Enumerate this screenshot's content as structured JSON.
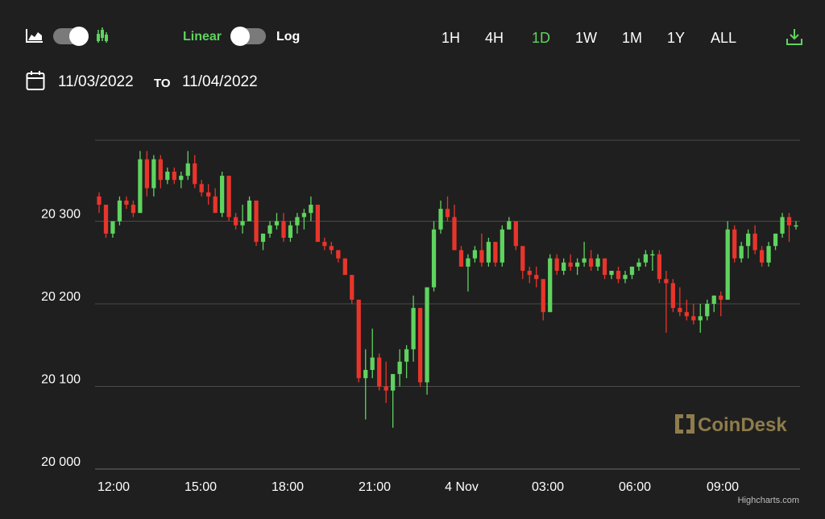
{
  "toolbar": {
    "scale_linear": "Linear",
    "scale_log": "Log",
    "ranges": [
      "1H",
      "4H",
      "1D",
      "1W",
      "1M",
      "1Y",
      "ALL"
    ],
    "active_range": "1D",
    "accent_color": "#5fd35f",
    "icons": [
      "area-chart-icon",
      "candlestick-chart-icon",
      "download-icon",
      "calendar-icon"
    ]
  },
  "date_range": {
    "from": "11/03/2022",
    "to_label": "TO",
    "to": "11/04/2022"
  },
  "watermark": "CoinDesk",
  "credits": "Highcharts.com",
  "chart_data": {
    "type": "candlestick",
    "x_tick_labels": [
      "12:00",
      "15:00",
      "18:00",
      "21:00",
      "4 Nov",
      "03:00",
      "06:00",
      "09:00"
    ],
    "y_tick_labels": [
      "20 000",
      "20 100",
      "20 200",
      "20 300"
    ],
    "y_ticks": [
      20000,
      20100,
      20200,
      20300
    ],
    "ylim": [
      20000,
      20400
    ],
    "grid": true,
    "up_color": "#5fd35f",
    "down_color": "#e8352b",
    "candles": [
      [
        20330,
        20335,
        20310,
        20320
      ],
      [
        20320,
        20320,
        20280,
        20285
      ],
      [
        20285,
        20300,
        20280,
        20300
      ],
      [
        20300,
        20330,
        20295,
        20325
      ],
      [
        20325,
        20330,
        20315,
        20320
      ],
      [
        20320,
        20325,
        20305,
        20310
      ],
      [
        20310,
        20385,
        20310,
        20375
      ],
      [
        20375,
        20385,
        20330,
        20340
      ],
      [
        20340,
        20380,
        20330,
        20375
      ],
      [
        20375,
        20380,
        20340,
        20350
      ],
      [
        20350,
        20365,
        20345,
        20360
      ],
      [
        20360,
        20365,
        20345,
        20350
      ],
      [
        20350,
        20360,
        20340,
        20355
      ],
      [
        20355,
        20385,
        20350,
        20370
      ],
      [
        20370,
        20380,
        20340,
        20345
      ],
      [
        20345,
        20350,
        20330,
        20335
      ],
      [
        20335,
        20345,
        20320,
        20330
      ],
      [
        20330,
        20340,
        20310,
        20310
      ],
      [
        20310,
        20360,
        20305,
        20355
      ],
      [
        20355,
        20355,
        20300,
        20305
      ],
      [
        20305,
        20310,
        20290,
        20295
      ],
      [
        20295,
        20320,
        20285,
        20300
      ],
      [
        20300,
        20330,
        20300,
        20325
      ],
      [
        20325,
        20325,
        20270,
        20275
      ],
      [
        20275,
        20285,
        20265,
        20285
      ],
      [
        20285,
        20300,
        20280,
        20295
      ],
      [
        20295,
        20310,
        20290,
        20300
      ],
      [
        20300,
        20310,
        20275,
        20280
      ],
      [
        20280,
        20300,
        20275,
        20295
      ],
      [
        20295,
        20310,
        20285,
        20305
      ],
      [
        20305,
        20315,
        20290,
        20310
      ],
      [
        20310,
        20330,
        20300,
        20320
      ],
      [
        20320,
        20320,
        20275,
        20275
      ],
      [
        20275,
        20280,
        20265,
        20270
      ],
      [
        20270,
        20275,
        20260,
        20265
      ],
      [
        20265,
        20265,
        20250,
        20255
      ],
      [
        20255,
        20255,
        20235,
        20235
      ],
      [
        20235,
        20235,
        20200,
        20205
      ],
      [
        20205,
        20205,
        20105,
        20110
      ],
      [
        20110,
        20145,
        20060,
        20120
      ],
      [
        20120,
        20170,
        20110,
        20135
      ],
      [
        20135,
        20140,
        20095,
        20100
      ],
      [
        20100,
        20130,
        20080,
        20095
      ],
      [
        20095,
        20115,
        20050,
        20115
      ],
      [
        20115,
        20145,
        20100,
        20130
      ],
      [
        20130,
        20150,
        20110,
        20145
      ],
      [
        20145,
        20210,
        20130,
        20195
      ],
      [
        20195,
        20195,
        20100,
        20105
      ],
      [
        20105,
        20220,
        20090,
        20220
      ],
      [
        20220,
        20300,
        20215,
        20290
      ],
      [
        20290,
        20325,
        20285,
        20315
      ],
      [
        20315,
        20330,
        20300,
        20305
      ],
      [
        20305,
        20320,
        20265,
        20265
      ],
      [
        20265,
        20270,
        20245,
        20245
      ],
      [
        20245,
        20260,
        20215,
        20255
      ],
      [
        20255,
        20270,
        20250,
        20265
      ],
      [
        20265,
        20285,
        20245,
        20250
      ],
      [
        20250,
        20280,
        20245,
        20275
      ],
      [
        20275,
        20275,
        20245,
        20250
      ],
      [
        20250,
        20295,
        20245,
        20290
      ],
      [
        20290,
        20305,
        20290,
        20300
      ],
      [
        20300,
        20300,
        20265,
        20270
      ],
      [
        20270,
        20270,
        20230,
        20240
      ],
      [
        20240,
        20245,
        20225,
        20235
      ],
      [
        20235,
        20245,
        20220,
        20230
      ],
      [
        20230,
        20230,
        20180,
        20190
      ],
      [
        20190,
        20260,
        20190,
        20255
      ],
      [
        20255,
        20260,
        20235,
        20240
      ],
      [
        20240,
        20255,
        20235,
        20250
      ],
      [
        20250,
        20260,
        20240,
        20245
      ],
      [
        20245,
        20255,
        20235,
        20250
      ],
      [
        20250,
        20275,
        20245,
        20255
      ],
      [
        20255,
        20265,
        20240,
        20245
      ],
      [
        20245,
        20260,
        20240,
        20255
      ],
      [
        20255,
        20255,
        20230,
        20235
      ],
      [
        20235,
        20240,
        20230,
        20240
      ],
      [
        20240,
        20245,
        20225,
        20230
      ],
      [
        20230,
        20240,
        20225,
        20235
      ],
      [
        20235,
        20245,
        20230,
        20245
      ],
      [
        20245,
        20255,
        20240,
        20250
      ],
      [
        20250,
        20265,
        20245,
        20260
      ],
      [
        20260,
        20265,
        20240,
        20260
      ],
      [
        20260,
        20265,
        20225,
        20230
      ],
      [
        20230,
        20240,
        20165,
        20225
      ],
      [
        20225,
        20230,
        20190,
        20195
      ],
      [
        20195,
        20220,
        20185,
        20190
      ],
      [
        20190,
        20205,
        20180,
        20185
      ],
      [
        20185,
        20200,
        20175,
        20180
      ],
      [
        20180,
        20200,
        20165,
        20185
      ],
      [
        20185,
        20205,
        20180,
        20200
      ],
      [
        20200,
        20210,
        20190,
        20210
      ],
      [
        20210,
        20215,
        20185,
        20205
      ],
      [
        20205,
        20300,
        20205,
        20290
      ],
      [
        20290,
        20295,
        20250,
        20255
      ],
      [
        20255,
        20275,
        20250,
        20270
      ],
      [
        20270,
        20290,
        20255,
        20285
      ],
      [
        20285,
        20295,
        20260,
        20265
      ],
      [
        20265,
        20270,
        20245,
        20250
      ],
      [
        20250,
        20275,
        20245,
        20270
      ],
      [
        20270,
        20285,
        20265,
        20285
      ],
      [
        20285,
        20310,
        20280,
        20305
      ],
      [
        20305,
        20310,
        20275,
        20295
      ],
      [
        20295,
        20300,
        20290,
        20295
      ]
    ]
  }
}
